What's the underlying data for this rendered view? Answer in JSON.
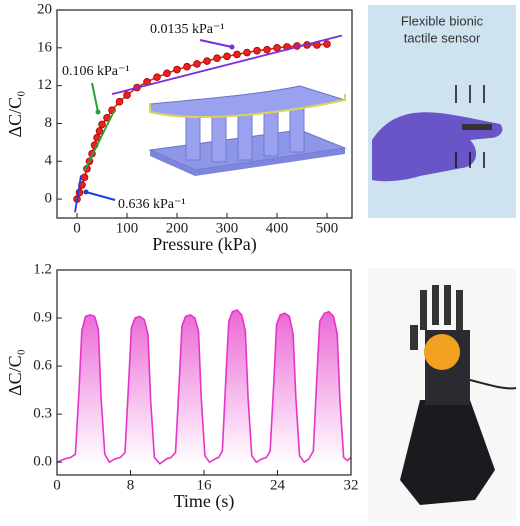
{
  "chart_data": [
    {
      "type": "line",
      "markers": true,
      "x_label": "Pressure (kPa)",
      "y_label": "ΔC/C₀",
      "x": [
        0,
        5,
        10,
        15,
        20,
        25,
        30,
        35,
        40,
        45,
        50,
        60,
        70,
        85,
        100,
        120,
        140,
        160,
        180,
        200,
        220,
        240,
        260,
        280,
        300,
        320,
        340,
        360,
        380,
        400,
        420,
        440,
        460,
        480,
        500
      ],
      "series": [
        {
          "color": "#e8231f",
          "values": [
            0,
            0.7,
            1.5,
            2.3,
            3.2,
            4.0,
            4.8,
            5.7,
            6.5,
            7.2,
            7.9,
            8.6,
            9.4,
            10.3,
            11.0,
            11.8,
            12.4,
            12.9,
            13.3,
            13.7,
            14.0,
            14.3,
            14.6,
            14.9,
            15.1,
            15.3,
            15.5,
            15.7,
            15.8,
            16.0,
            16.1,
            16.2,
            16.3,
            16.3,
            16.4
          ]
        }
      ],
      "fit_lines": [
        {
          "color": "#1f3fd6",
          "x": [
            -4,
            8
          ],
          "values": [
            -1.4,
            2.5
          ]
        },
        {
          "color": "#22a33a",
          "x": [
            15,
            75
          ],
          "values": [
            3.0,
            9.4
          ]
        },
        {
          "color": "#7a2fd8",
          "x": [
            70,
            530
          ],
          "values": [
            11.1,
            17.3
          ]
        }
      ],
      "annotations": [
        "0.0135 kPa⁻¹",
        "0.106 kPa⁻¹",
        "0.636 kPa⁻¹"
      ],
      "xlim": [
        -40,
        550
      ],
      "xticks": [
        0,
        100,
        200,
        300,
        400,
        500
      ],
      "ylim": [
        -2,
        20
      ],
      "yticks": [
        0,
        4,
        8,
        12,
        16,
        20
      ]
    },
    {
      "type": "line",
      "area_fill": true,
      "x_label": "Time (s)",
      "y_label": "ΔC/C₀",
      "x": [
        0,
        0.8,
        1.5,
        2.0,
        2.4,
        2.7,
        3.1,
        3.6,
        4.1,
        4.5,
        4.8,
        5.2,
        5.7,
        6.3,
        6.9,
        7.4,
        7.8,
        8.1,
        8.5,
        9.0,
        9.5,
        9.9,
        10.2,
        10.6,
        11.2,
        11.9,
        12.4,
        12.9,
        13.3,
        13.6,
        14.0,
        14.5,
        15.0,
        15.4,
        15.7,
        16.1,
        16.6,
        17.2,
        17.6,
        18.0,
        18.4,
        18.7,
        19.1,
        19.6,
        20.1,
        20.5,
        20.8,
        21.2,
        21.7,
        22.3,
        22.8,
        23.2,
        23.6,
        23.9,
        24.3,
        24.8,
        25.3,
        25.7,
        26.0,
        26.4,
        26.9,
        27.4,
        27.9,
        28.3,
        28.6,
        29.1,
        29.6,
        30.1,
        30.5,
        30.8,
        31.2,
        31.6,
        32.0
      ],
      "series": [
        {
          "color": "#e535c8",
          "values": [
            0.0,
            0.02,
            0.03,
            0.05,
            0.45,
            0.82,
            0.91,
            0.92,
            0.91,
            0.83,
            0.4,
            0.05,
            0.0,
            0.02,
            0.03,
            0.06,
            0.5,
            0.84,
            0.9,
            0.91,
            0.89,
            0.8,
            0.38,
            0.03,
            -0.01,
            0.02,
            0.03,
            0.06,
            0.5,
            0.85,
            0.91,
            0.92,
            0.9,
            0.82,
            0.4,
            0.04,
            0.0,
            0.02,
            0.03,
            0.07,
            0.55,
            0.88,
            0.94,
            0.95,
            0.92,
            0.82,
            0.4,
            0.04,
            0.0,
            0.02,
            0.03,
            0.07,
            0.5,
            0.86,
            0.92,
            0.93,
            0.91,
            0.8,
            0.4,
            0.04,
            0.0,
            0.02,
            0.07,
            0.55,
            0.88,
            0.93,
            0.94,
            0.91,
            0.8,
            0.38,
            0.03,
            0.01,
            0.03
          ]
        }
      ],
      "xlim": [
        0,
        32
      ],
      "xticks": [
        0,
        8,
        16,
        24,
        32
      ],
      "ylim": [
        -0.08,
        1.2
      ],
      "yticks": [
        {
          "value": 0,
          "label": "0.0"
        },
        {
          "value": 0.3,
          "label": "0.3"
        },
        {
          "value": 0.6,
          "label": "0.6"
        },
        {
          "value": 0.9,
          "label": "0.9"
        },
        {
          "value": 1.2,
          "label": "1.2"
        }
      ]
    }
  ],
  "photos": {
    "sensor_caption": [
      "Flexible bionic",
      "tactile sensor"
    ]
  }
}
